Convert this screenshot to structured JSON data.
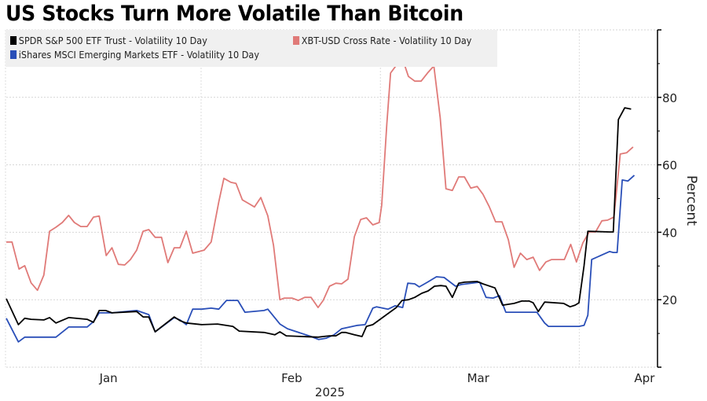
{
  "chart_data": {
    "type": "line",
    "title": "US Stocks Turn More Volatile Than Bitcoin",
    "xlabel": "2025",
    "ylabel": "Percent",
    "ylim": [
      0,
      100
    ],
    "yticks": [
      20,
      40,
      60,
      80
    ],
    "xticks": [
      {
        "label": "Jan",
        "pos": 0.158
      },
      {
        "label": "Feb",
        "pos": 0.439
      },
      {
        "label": "Mar",
        "pos": 0.725
      },
      {
        "label": "Apr",
        "pos": 0.98
      }
    ],
    "vgrid_pos": [
      0.0,
      0.3,
      0.575,
      0.88
    ],
    "grid": true,
    "legend_placement": "top-left",
    "x_domain": [
      0,
      1
    ],
    "series": [
      {
        "name": "SPDR S&P 500 ETF Trust - Volatility 10 Day",
        "color": "#000000",
        "points": [
          [
            0.0,
            20.3
          ],
          [
            0.019,
            12.6
          ],
          [
            0.029,
            14.5
          ],
          [
            0.039,
            14.2
          ],
          [
            0.059,
            14.0
          ],
          [
            0.068,
            14.7
          ],
          [
            0.078,
            13.1
          ],
          [
            0.098,
            14.7
          ],
          [
            0.127,
            14.2
          ],
          [
            0.137,
            13.3
          ],
          [
            0.146,
            16.8
          ],
          [
            0.156,
            16.8
          ],
          [
            0.166,
            16.1
          ],
          [
            0.205,
            16.5
          ],
          [
            0.215,
            14.9
          ],
          [
            0.224,
            14.9
          ],
          [
            0.234,
            10.5
          ],
          [
            0.264,
            14.9
          ],
          [
            0.273,
            13.8
          ],
          [
            0.283,
            13.1
          ],
          [
            0.307,
            12.6
          ],
          [
            0.332,
            12.8
          ],
          [
            0.356,
            12.1
          ],
          [
            0.366,
            10.7
          ],
          [
            0.405,
            10.3
          ],
          [
            0.422,
            9.6
          ],
          [
            0.43,
            10.5
          ],
          [
            0.44,
            9.3
          ],
          [
            0.49,
            8.9
          ],
          [
            0.498,
            9.1
          ],
          [
            0.508,
            9.3
          ],
          [
            0.518,
            9.3
          ],
          [
            0.527,
            10.3
          ],
          [
            0.533,
            10.3
          ],
          [
            0.547,
            9.6
          ],
          [
            0.559,
            9.1
          ],
          [
            0.566,
            12.1
          ],
          [
            0.576,
            12.6
          ],
          [
            0.613,
            17.7
          ],
          [
            0.622,
            19.8
          ],
          [
            0.632,
            20.0
          ],
          [
            0.642,
            20.7
          ],
          [
            0.653,
            21.9
          ],
          [
            0.663,
            22.6
          ],
          [
            0.673,
            24.0
          ],
          [
            0.683,
            24.2
          ],
          [
            0.691,
            24.0
          ],
          [
            0.701,
            20.7
          ],
          [
            0.711,
            24.9
          ],
          [
            0.72,
            25.2
          ],
          [
            0.74,
            25.4
          ],
          [
            0.749,
            24.7
          ],
          [
            0.768,
            23.5
          ],
          [
            0.78,
            18.4
          ],
          [
            0.798,
            18.9
          ],
          [
            0.81,
            19.6
          ],
          [
            0.822,
            19.6
          ],
          [
            0.828,
            19.1
          ],
          [
            0.836,
            16.5
          ],
          [
            0.846,
            19.3
          ],
          [
            0.876,
            18.9
          ],
          [
            0.886,
            17.9
          ],
          [
            0.894,
            18.4
          ],
          [
            0.9,
            19.1
          ],
          [
            0.908,
            30.1
          ],
          [
            0.914,
            40.3
          ],
          [
            0.948,
            40.1
          ],
          [
            0.954,
            40.1
          ],
          [
            0.962,
            73.4
          ],
          [
            0.972,
            76.9
          ],
          [
            0.982,
            76.5
          ]
        ]
      },
      {
        "name": "XBT-USD Cross Rate - Volatility 10 Day",
        "color": "#e07a78",
        "points": [
          [
            0.0,
            37.1
          ],
          [
            0.009,
            37.1
          ],
          [
            0.02,
            29.1
          ],
          [
            0.029,
            30.1
          ],
          [
            0.039,
            25.0
          ],
          [
            0.049,
            22.8
          ],
          [
            0.059,
            27.3
          ],
          [
            0.068,
            40.3
          ],
          [
            0.078,
            41.5
          ],
          [
            0.088,
            42.9
          ],
          [
            0.098,
            45.0
          ],
          [
            0.107,
            42.9
          ],
          [
            0.117,
            41.7
          ],
          [
            0.127,
            41.7
          ],
          [
            0.137,
            44.5
          ],
          [
            0.146,
            44.8
          ],
          [
            0.157,
            33.1
          ],
          [
            0.166,
            35.4
          ],
          [
            0.176,
            30.5
          ],
          [
            0.186,
            30.3
          ],
          [
            0.195,
            31.9
          ],
          [
            0.205,
            34.7
          ],
          [
            0.215,
            40.3
          ],
          [
            0.224,
            40.8
          ],
          [
            0.234,
            38.5
          ],
          [
            0.244,
            38.5
          ],
          [
            0.254,
            31.0
          ],
          [
            0.264,
            35.4
          ],
          [
            0.273,
            35.4
          ],
          [
            0.283,
            40.3
          ],
          [
            0.293,
            33.8
          ],
          [
            0.303,
            34.3
          ],
          [
            0.311,
            34.7
          ],
          [
            0.322,
            37.1
          ],
          [
            0.334,
            49.0
          ],
          [
            0.342,
            56.0
          ],
          [
            0.353,
            54.8
          ],
          [
            0.361,
            54.5
          ],
          [
            0.371,
            49.6
          ],
          [
            0.381,
            48.5
          ],
          [
            0.39,
            47.5
          ],
          [
            0.4,
            50.3
          ],
          [
            0.411,
            44.9
          ],
          [
            0.42,
            36.1
          ],
          [
            0.43,
            20.0
          ],
          [
            0.437,
            20.5
          ],
          [
            0.449,
            20.5
          ],
          [
            0.459,
            19.8
          ],
          [
            0.469,
            20.7
          ],
          [
            0.479,
            20.7
          ],
          [
            0.49,
            17.7
          ],
          [
            0.498,
            19.8
          ],
          [
            0.508,
            24.0
          ],
          [
            0.518,
            24.9
          ],
          [
            0.527,
            24.7
          ],
          [
            0.537,
            26.1
          ],
          [
            0.547,
            38.7
          ],
          [
            0.557,
            43.8
          ],
          [
            0.566,
            44.3
          ],
          [
            0.576,
            42.2
          ],
          [
            0.586,
            42.9
          ],
          [
            0.59,
            48.0
          ],
          [
            0.598,
            72.0
          ],
          [
            0.604,
            87.2
          ],
          [
            0.622,
            91.8
          ],
          [
            0.632,
            86.2
          ],
          [
            0.642,
            84.8
          ],
          [
            0.652,
            84.8
          ],
          [
            0.662,
            87.2
          ],
          [
            0.672,
            89.3
          ],
          [
            0.682,
            73.9
          ],
          [
            0.691,
            52.9
          ],
          [
            0.701,
            52.4
          ],
          [
            0.711,
            56.4
          ],
          [
            0.72,
            56.4
          ],
          [
            0.73,
            53.1
          ],
          [
            0.74,
            53.6
          ],
          [
            0.749,
            51.3
          ],
          [
            0.759,
            47.6
          ],
          [
            0.769,
            43.1
          ],
          [
            0.779,
            43.1
          ],
          [
            0.789,
            37.8
          ],
          [
            0.798,
            29.6
          ],
          [
            0.808,
            33.8
          ],
          [
            0.818,
            31.9
          ],
          [
            0.828,
            32.6
          ],
          [
            0.838,
            28.7
          ],
          [
            0.848,
            31.2
          ],
          [
            0.857,
            31.9
          ],
          [
            0.867,
            31.9
          ],
          [
            0.877,
            31.9
          ],
          [
            0.887,
            36.4
          ],
          [
            0.896,
            31.2
          ],
          [
            0.906,
            36.8
          ],
          [
            0.916,
            40.1
          ],
          [
            0.926,
            40.1
          ],
          [
            0.936,
            43.4
          ],
          [
            0.945,
            43.6
          ],
          [
            0.955,
            44.5
          ],
          [
            0.965,
            63.2
          ],
          [
            0.975,
            63.6
          ],
          [
            0.985,
            65.3
          ]
        ]
      },
      {
        "name": "iShares MSCI Emerging Markets ETF - Volatility 10 Day",
        "color": "#2a4fb8",
        "points": [
          [
            0.0,
            14.5
          ],
          [
            0.019,
            7.5
          ],
          [
            0.029,
            8.9
          ],
          [
            0.078,
            8.9
          ],
          [
            0.098,
            11.9
          ],
          [
            0.127,
            11.9
          ],
          [
            0.137,
            13.5
          ],
          [
            0.146,
            16.1
          ],
          [
            0.166,
            16.1
          ],
          [
            0.205,
            16.8
          ],
          [
            0.224,
            15.6
          ],
          [
            0.234,
            10.5
          ],
          [
            0.264,
            14.7
          ],
          [
            0.273,
            14.0
          ],
          [
            0.283,
            12.6
          ],
          [
            0.293,
            17.2
          ],
          [
            0.307,
            17.2
          ],
          [
            0.322,
            17.5
          ],
          [
            0.334,
            17.2
          ],
          [
            0.346,
            19.8
          ],
          [
            0.364,
            19.8
          ],
          [
            0.375,
            16.3
          ],
          [
            0.405,
            16.8
          ],
          [
            0.411,
            17.2
          ],
          [
            0.43,
            12.8
          ],
          [
            0.442,
            11.4
          ],
          [
            0.479,
            9.1
          ],
          [
            0.491,
            8.2
          ],
          [
            0.503,
            8.6
          ],
          [
            0.515,
            9.6
          ],
          [
            0.527,
            11.4
          ],
          [
            0.552,
            12.4
          ],
          [
            0.564,
            12.6
          ],
          [
            0.576,
            17.5
          ],
          [
            0.582,
            17.9
          ],
          [
            0.6,
            17.2
          ],
          [
            0.611,
            18.2
          ],
          [
            0.623,
            17.7
          ],
          [
            0.631,
            24.9
          ],
          [
            0.642,
            24.7
          ],
          [
            0.649,
            23.8
          ],
          [
            0.662,
            25.2
          ],
          [
            0.676,
            26.8
          ],
          [
            0.688,
            26.6
          ],
          [
            0.706,
            24.0
          ],
          [
            0.715,
            24.5
          ],
          [
            0.744,
            25.2
          ],
          [
            0.754,
            20.7
          ],
          [
            0.765,
            20.5
          ],
          [
            0.775,
            21.2
          ],
          [
            0.785,
            16.3
          ],
          [
            0.798,
            16.3
          ],
          [
            0.834,
            16.3
          ],
          [
            0.846,
            13.1
          ],
          [
            0.852,
            12.1
          ],
          [
            0.888,
            12.1
          ],
          [
            0.9,
            12.1
          ],
          [
            0.908,
            12.4
          ],
          [
            0.914,
            15.4
          ],
          [
            0.92,
            31.9
          ],
          [
            0.948,
            34.3
          ],
          [
            0.954,
            34.0
          ],
          [
            0.96,
            34.0
          ],
          [
            0.968,
            55.5
          ],
          [
            0.977,
            55.2
          ],
          [
            0.987,
            56.9
          ]
        ]
      }
    ]
  },
  "header": {
    "title": "US Stocks Turn More Volatile Than Bitcoin"
  },
  "legend": {
    "items": [
      {
        "label": "SPDR S&P 500 ETF Trust - Volatility 10 Day",
        "color": "#000000"
      },
      {
        "label": "XBT-USD Cross Rate - Volatility 10 Day",
        "color": "#e07a78"
      },
      {
        "label": "iShares MSCI Emerging Markets ETF - Volatility 10 Day",
        "color": "#2a4fb8"
      }
    ]
  }
}
